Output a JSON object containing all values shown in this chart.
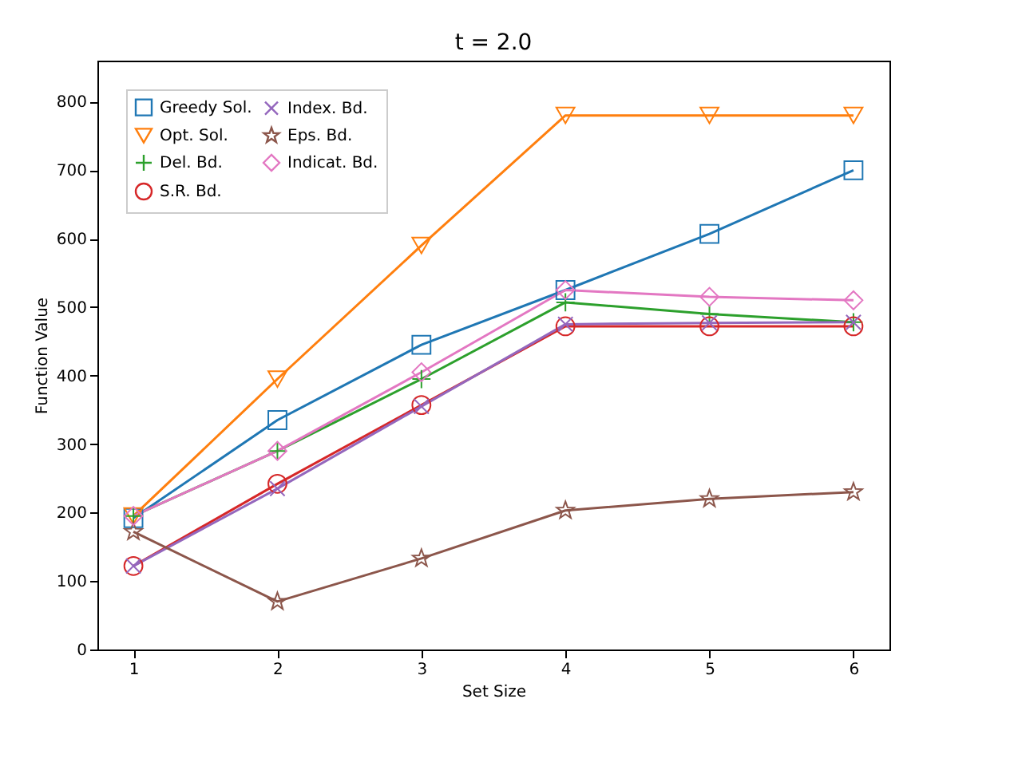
{
  "chart_data": {
    "type": "line",
    "title": "t = 2.0",
    "xlabel": "Set Size",
    "ylabel": "Function Value",
    "x": [
      1,
      2,
      3,
      4,
      5,
      6
    ],
    "xlim": [
      0.75,
      6.25
    ],
    "xticks": [
      1,
      2,
      3,
      4,
      5,
      6
    ],
    "ylim": [
      0,
      860
    ],
    "yticks": [
      0,
      100,
      200,
      300,
      400,
      500,
      600,
      700,
      800
    ],
    "grid": false,
    "legend": "top left",
    "line_style": "solid",
    "series": [
      {
        "name": "Greedy Sol.",
        "color": "#1f77b4",
        "marker": "square",
        "values": [
          192,
          335,
          445,
          525,
          607,
          700
        ]
      },
      {
        "name": "Opt. Sol.",
        "color": "#ff7f0e",
        "marker": "triangle-down",
        "values": [
          195,
          395,
          590,
          780,
          780,
          780
        ]
      },
      {
        "name": "Del. Bd.",
        "color": "#2ca02c",
        "marker": "plus",
        "values": [
          195,
          290,
          395,
          507,
          490,
          478
        ]
      },
      {
        "name": "S.R. Bd.",
        "color": "#d62728",
        "marker": "circle",
        "values": [
          122,
          242,
          357,
          472,
          472,
          472
        ]
      },
      {
        "name": "Index. Bd.",
        "color": "#9467bd",
        "marker": "cross",
        "values": [
          122,
          235,
          355,
          475,
          477,
          478
        ]
      },
      {
        "name": "Eps. Bd.",
        "color": "#8c564b",
        "marker": "star",
        "values": [
          172,
          70,
          133,
          203,
          220,
          230
        ]
      },
      {
        "name": "Indicat. Bd.",
        "color": "#e377c2",
        "marker": "diamond",
        "values": [
          195,
          290,
          405,
          525,
          515,
          510
        ]
      }
    ]
  }
}
